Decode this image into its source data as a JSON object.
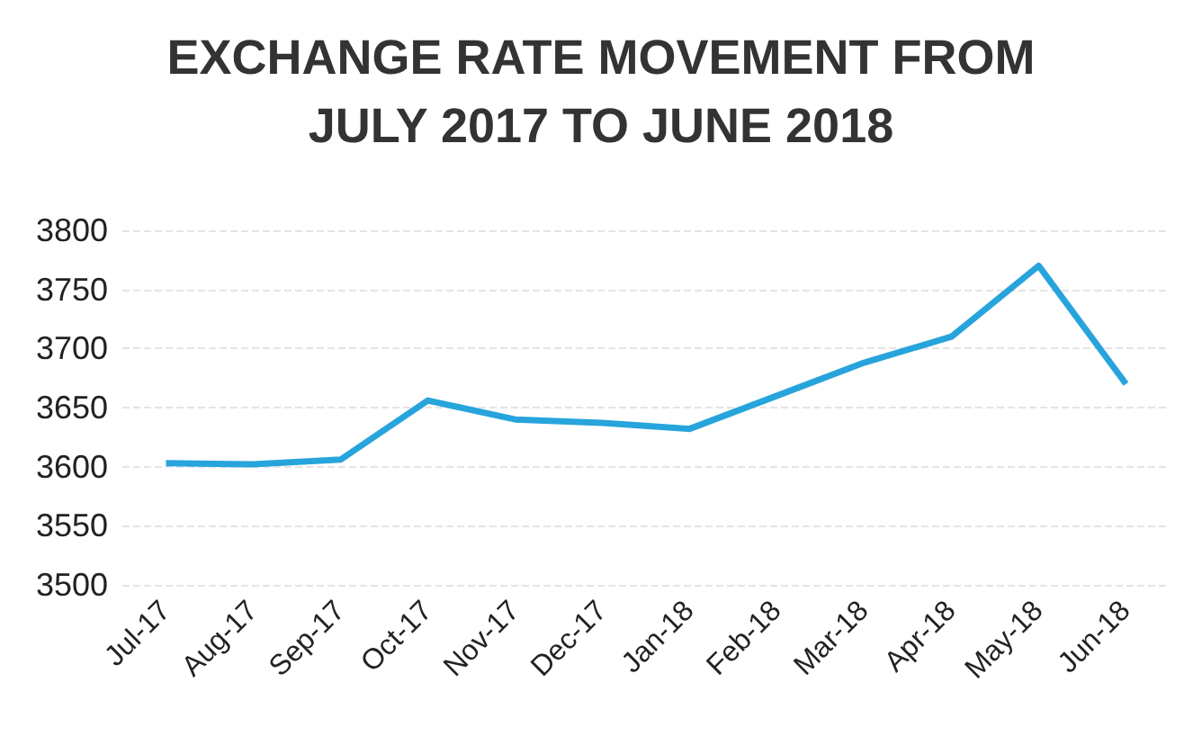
{
  "chart_data": {
    "type": "line",
    "title": "EXCHANGE RATE MOVEMENT FROM\nJULY 2017 TO JUNE 2018",
    "categories": [
      "Jul-17",
      "Aug-17",
      "Sep-17",
      "Oct-17",
      "Nov-17",
      "Dec-17",
      "Jan-18",
      "Feb-18",
      "Mar-18",
      "Apr-18",
      "May-18",
      "Jun-18"
    ],
    "series": [
      {
        "color": "#27a4dc",
        "values": [
          3603,
          3602,
          3606,
          3656,
          3640,
          3637,
          3632,
          3660,
          3688,
          3710,
          3770,
          3670
        ]
      }
    ],
    "ylim": [
      3500,
      3800
    ],
    "yticks": [
      3500,
      3550,
      3600,
      3650,
      3700,
      3750,
      3800
    ],
    "grid": "y",
    "marker": "none"
  }
}
